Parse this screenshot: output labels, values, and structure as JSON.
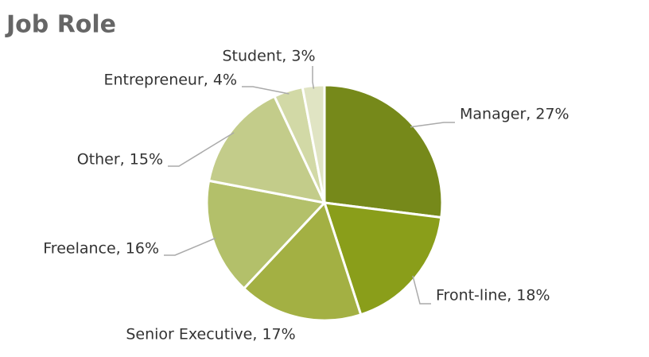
{
  "chart_data": {
    "type": "pie",
    "title": "Job Role",
    "values": [
      27,
      18,
      17,
      16,
      15,
      4,
      3
    ],
    "value_labels": [
      "Manager, 27%",
      "Front-line, 18%",
      "Senior Executive, 17%",
      "Freelance, 16%",
      "Other, 15%",
      "Entrepreneur, 4%",
      "Student, 3%"
    ],
    "colors": [
      "#76891a",
      "#8a9e1a",
      "#a3b043",
      "#b3c06a",
      "#c3cc8a",
      "#d2d9a6",
      "#e0e4c3"
    ]
  }
}
